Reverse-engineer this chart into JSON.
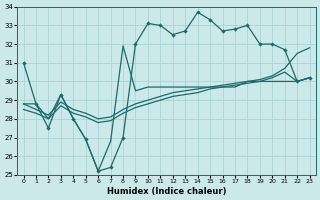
{
  "xlabel": "Humidex (Indice chaleur)",
  "xlim": [
    -0.5,
    23.5
  ],
  "ylim": [
    25,
    34
  ],
  "yticks": [
    25,
    26,
    27,
    28,
    29,
    30,
    31,
    32,
    33,
    34
  ],
  "xticks": [
    0,
    1,
    2,
    3,
    4,
    5,
    6,
    7,
    8,
    9,
    10,
    11,
    12,
    13,
    14,
    15,
    16,
    17,
    18,
    19,
    20,
    21,
    22,
    23
  ],
  "bg_color": "#cce9e9",
  "line_color": "#1a6b6b",
  "grid_color": "#aad4d4",
  "line_jagged": [
    31.0,
    28.8,
    27.5,
    29.3,
    28.0,
    26.9,
    25.2,
    25.4,
    27.0,
    32.0,
    33.1,
    33.0,
    32.5,
    32.7,
    33.7,
    33.3,
    32.7,
    32.8,
    33.0,
    32.0,
    32.0,
    31.7,
    30.0,
    30.2
  ],
  "line_steep": [
    28.8,
    28.8,
    28.0,
    29.3,
    28.0,
    26.9,
    25.2,
    26.8,
    31.9,
    29.5,
    29.7,
    29.7,
    29.7,
    29.7,
    29.7,
    29.7,
    29.7,
    29.7,
    30.0,
    30.0,
    30.0,
    30.0,
    30.0,
    30.2
  ],
  "line_diag1": [
    28.8,
    28.5,
    28.2,
    28.9,
    28.5,
    28.3,
    28.0,
    28.1,
    28.5,
    28.8,
    29.0,
    29.2,
    29.4,
    29.5,
    29.6,
    29.7,
    29.8,
    29.9,
    30.0,
    30.1,
    30.3,
    30.7,
    31.5,
    31.8
  ],
  "line_diag2": [
    28.5,
    28.3,
    28.0,
    28.7,
    28.3,
    28.1,
    27.8,
    27.9,
    28.3,
    28.6,
    28.8,
    29.0,
    29.2,
    29.3,
    29.4,
    29.6,
    29.7,
    29.8,
    29.9,
    30.0,
    30.2,
    30.5,
    30.0,
    30.2
  ]
}
